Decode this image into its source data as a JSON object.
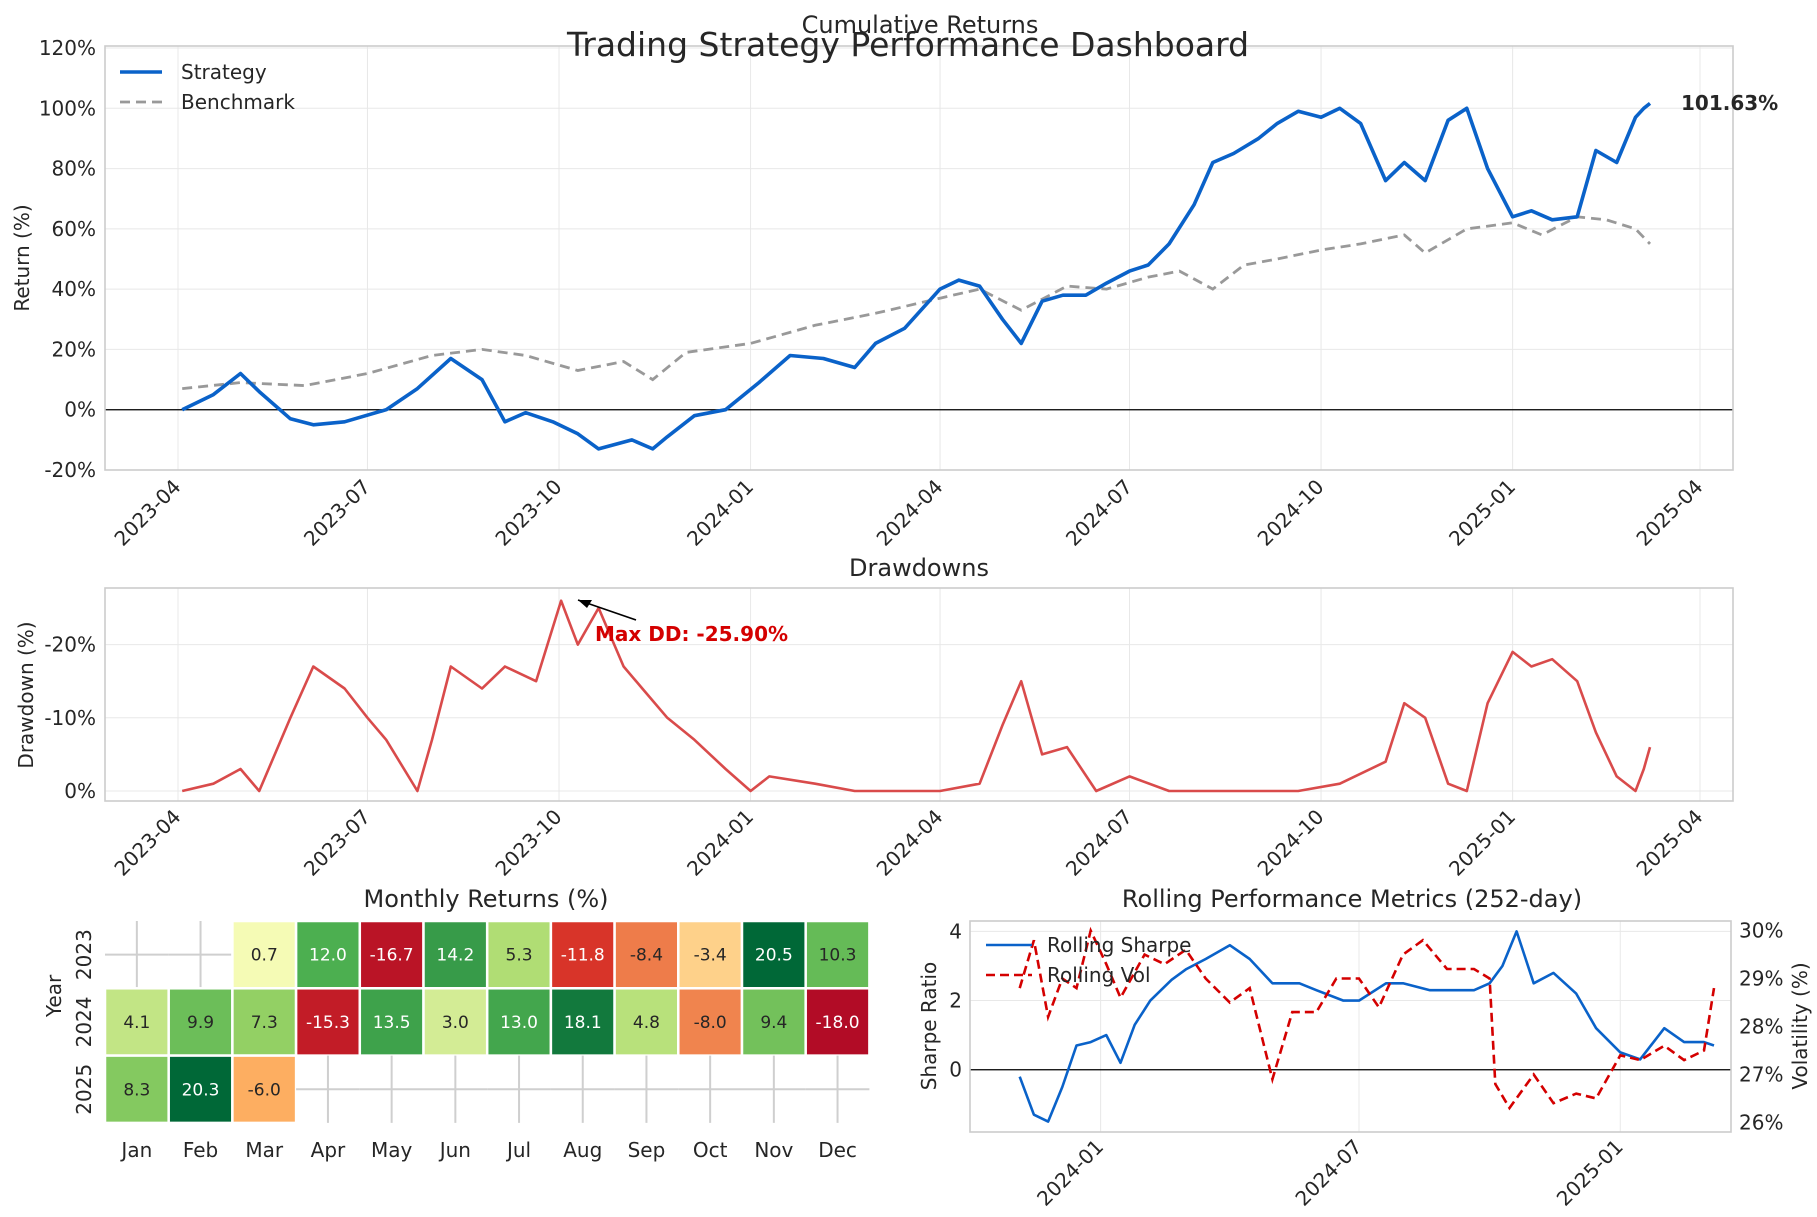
{
  "suptitle": "Trading Strategy Performance Dashboard",
  "colors": {
    "strategy": "#0a62c9",
    "benchmark": "#999999",
    "drawdown": "#d94b4b",
    "rolling_sharpe": "#0a62c9",
    "rolling_vol": "#d40000",
    "annotation_dd": "#d40000"
  },
  "chart_data": [
    {
      "type": "line",
      "title": "Cumulative Returns",
      "xlabel": "",
      "ylabel": "Return (%)",
      "ylim": [
        -20,
        120
      ],
      "yticks": [
        "-20%",
        "0%",
        "20%",
        "40%",
        "60%",
        "80%",
        "100%",
        "120%"
      ],
      "xticks": [
        "2023-04",
        "2023-07",
        "2023-10",
        "2024-01",
        "2024-04",
        "2024-07",
        "2024-10",
        "2025-01",
        "2025-04"
      ],
      "grid": true,
      "legend": "top-left",
      "final_label": "101.63%",
      "series": [
        {
          "name": "Strategy",
          "style": "solid",
          "x": [
            "2023-04-03",
            "2023-04-18",
            "2023-05-01",
            "2023-05-10",
            "2023-05-25",
            "2023-06-05",
            "2023-06-20",
            "2023-07-10",
            "2023-07-25",
            "2023-08-10",
            "2023-08-25",
            "2023-09-05",
            "2023-09-15",
            "2023-09-28",
            "2023-10-10",
            "2023-10-20",
            "2023-11-05",
            "2023-11-15",
            "2023-11-22",
            "2023-12-05",
            "2023-12-20",
            "2024-01-05",
            "2024-01-20",
            "2024-02-05",
            "2024-02-20",
            "2024-03-01",
            "2024-03-15",
            "2024-04-01",
            "2024-04-10",
            "2024-04-20",
            "2024-05-01",
            "2024-05-10",
            "2024-05-20",
            "2024-05-30",
            "2024-06-10",
            "2024-06-20",
            "2024-07-01",
            "2024-07-10",
            "2024-07-20",
            "2024-08-01",
            "2024-08-10",
            "2024-08-20",
            "2024-09-01",
            "2024-09-10",
            "2024-09-20",
            "2024-10-01",
            "2024-10-10",
            "2024-10-20",
            "2024-11-01",
            "2024-11-10",
            "2024-11-20",
            "2024-12-01",
            "2024-12-10",
            "2024-12-20",
            "2025-01-01",
            "2025-01-10",
            "2025-01-20",
            "2025-02-01",
            "2025-02-10",
            "2025-02-20",
            "2025-03-01",
            "2025-03-05",
            "2025-03-08"
          ],
          "values": [
            0,
            5,
            12,
            6,
            -3,
            -5,
            -4,
            0,
            7,
            17,
            10,
            -4,
            -1,
            -4,
            -8,
            -13,
            -10,
            -13,
            -9,
            -2,
            0,
            9,
            18,
            17,
            14,
            22,
            27,
            40,
            43,
            41,
            30,
            22,
            36,
            38,
            38,
            42,
            46,
            48,
            55,
            68,
            82,
            85,
            90,
            95,
            99,
            97,
            100,
            95,
            76,
            82,
            76,
            96,
            100,
            80,
            64,
            66,
            63,
            64,
            86,
            82,
            97,
            100,
            101.63
          ]
        },
        {
          "name": "Benchmark",
          "style": "dashed",
          "x": [
            "2023-04-03",
            "2023-05-01",
            "2023-06-01",
            "2023-07-01",
            "2023-08-01",
            "2023-08-25",
            "2023-09-15",
            "2023-10-10",
            "2023-11-01",
            "2023-11-15",
            "2023-12-01",
            "2024-01-01",
            "2024-02-01",
            "2024-03-01",
            "2024-04-01",
            "2024-04-20",
            "2024-05-10",
            "2024-06-01",
            "2024-06-20",
            "2024-07-10",
            "2024-07-25",
            "2024-08-10",
            "2024-08-25",
            "2024-09-10",
            "2024-10-01",
            "2024-10-20",
            "2024-11-10",
            "2024-11-20",
            "2024-12-10",
            "2025-01-01",
            "2025-01-15",
            "2025-02-01",
            "2025-02-15",
            "2025-03-01",
            "2025-03-08"
          ],
          "values": [
            7,
            9,
            8,
            12,
            18,
            20,
            18,
            13,
            16,
            10,
            19,
            22,
            28,
            32,
            37,
            40,
            33,
            41,
            40,
            44,
            46,
            40,
            48,
            50,
            53,
            55,
            58,
            52,
            60,
            62,
            58,
            64,
            63,
            60,
            55
          ]
        }
      ]
    },
    {
      "type": "line",
      "title": "Drawdowns",
      "xlabel": "",
      "ylabel": "Drawdown (%)",
      "ylim": [
        0,
        -26.5
      ],
      "yticks": [
        "-20%",
        "-10%",
        "0%"
      ],
      "xticks": [
        "2023-04",
        "2023-07",
        "2023-10",
        "2024-01",
        "2024-04",
        "2024-07",
        "2024-10",
        "2025-01",
        "2025-04"
      ],
      "grid": true,
      "annotation": "Max DD: -25.90%",
      "series": [
        {
          "name": "Drawdown",
          "x": [
            "2023-04-03",
            "2023-04-18",
            "2023-05-01",
            "2023-05-10",
            "2023-05-25",
            "2023-06-05",
            "2023-06-20",
            "2023-07-01",
            "2023-07-10",
            "2023-07-25",
            "2023-08-01",
            "2023-08-10",
            "2023-08-25",
            "2023-09-05",
            "2023-09-20",
            "2023-10-02",
            "2023-10-10",
            "2023-10-20",
            "2023-11-01",
            "2023-11-10",
            "2023-11-22",
            "2023-12-05",
            "2023-12-20",
            "2024-01-01",
            "2024-01-10",
            "2024-02-01",
            "2024-02-20",
            "2024-03-10",
            "2024-04-01",
            "2024-04-20",
            "2024-05-01",
            "2024-05-10",
            "2024-05-20",
            "2024-06-01",
            "2024-06-15",
            "2024-07-01",
            "2024-07-20",
            "2024-08-10",
            "2024-09-01",
            "2024-09-20",
            "2024-10-10",
            "2024-11-01",
            "2024-11-10",
            "2024-11-20",
            "2024-12-01",
            "2024-12-10",
            "2024-12-20",
            "2025-01-01",
            "2025-01-10",
            "2025-01-20",
            "2025-02-01",
            "2025-02-10",
            "2025-02-20",
            "2025-03-01",
            "2025-03-05",
            "2025-03-08"
          ],
          "values": [
            0,
            -1,
            -3,
            0,
            -10,
            -17,
            -14,
            -10,
            -7,
            0,
            -7,
            -17,
            -14,
            -17,
            -15,
            -26,
            -20,
            -25,
            -17,
            -14,
            -10,
            -7,
            -3,
            0,
            -2,
            -1,
            0,
            0,
            0,
            -1,
            -9,
            -15,
            -5,
            -6,
            0,
            -2,
            0,
            0,
            0,
            0,
            -1,
            -4,
            -12,
            -10,
            -1,
            0,
            -12,
            -19,
            -17,
            -18,
            -15,
            -8,
            -2,
            0,
            -3,
            -6
          ]
        }
      ]
    },
    {
      "type": "heatmap",
      "title": "Monthly Returns (%)",
      "xlabel": "",
      "ylabel": "Year",
      "columns": [
        "Jan",
        "Feb",
        "Mar",
        "Apr",
        "May",
        "Jun",
        "Jul",
        "Aug",
        "Sep",
        "Oct",
        "Nov",
        "Dec"
      ],
      "rows": [
        "2023",
        "2024",
        "2025"
      ],
      "values": [
        [
          null,
          null,
          0.7,
          12.0,
          -16.7,
          14.2,
          5.3,
          -11.8,
          -8.4,
          -3.4,
          20.5,
          10.3
        ],
        [
          4.1,
          9.9,
          7.3,
          -15.3,
          13.5,
          3.0,
          13.0,
          18.1,
          4.8,
          -8.0,
          9.4,
          -18.0
        ],
        [
          8.3,
          20.3,
          -6.0,
          null,
          null,
          null,
          null,
          null,
          null,
          null,
          null,
          null
        ]
      ],
      "labels": [
        [
          "",
          "",
          "0.7",
          "12.0",
          "-16.7",
          "14.2",
          "5.3",
          "-11.8",
          "-8.4",
          "-3.4",
          "20.5",
          "10.3"
        ],
        [
          "4.1",
          "9.9",
          "7.3",
          "-15.3",
          "13.5",
          "3.0",
          "13.0",
          "18.1",
          "4.8",
          "-8.0",
          "9.4",
          "-18.0"
        ],
        [
          "8.3",
          "20.3",
          "-6.0",
          "",
          "",
          "",
          "",
          "",
          "",
          "",
          "",
          ""
        ]
      ],
      "colormap": "RdYlGn",
      "vmin": -20,
      "vmax": 20
    },
    {
      "type": "line",
      "title": "Rolling Performance Metrics (252-day)",
      "xlabel": "",
      "ylabel": "Sharpe Ratio",
      "y2label": "Volatility (%)",
      "ylim": [
        -1.8,
        4.3
      ],
      "y2lim": [
        25.8,
        30.2
      ],
      "yticks": [
        "0",
        "2",
        "4"
      ],
      "y2ticks": [
        "26%",
        "27%",
        "28%",
        "29%",
        "30%"
      ],
      "xticks": [
        "2024-01",
        "2024-07",
        "2025-01"
      ],
      "grid": true,
      "legend": "top-left",
      "series": [
        {
          "name": "Rolling Sharpe",
          "axis": "left",
          "style": "solid",
          "x": [
            "2023-11-05",
            "2023-11-15",
            "2023-11-25",
            "2023-12-05",
            "2023-12-15",
            "2023-12-25",
            "2024-01-05",
            "2024-01-15",
            "2024-01-25",
            "2024-02-05",
            "2024-02-20",
            "2024-03-01",
            "2024-03-15",
            "2024-04-01",
            "2024-04-15",
            "2024-05-01",
            "2024-05-20",
            "2024-06-01",
            "2024-06-20",
            "2024-07-01",
            "2024-07-20",
            "2024-08-01",
            "2024-08-20",
            "2024-09-01",
            "2024-09-20",
            "2024-10-01",
            "2024-10-10",
            "2024-10-20",
            "2024-11-01",
            "2024-11-15",
            "2024-12-01",
            "2024-12-15",
            "2025-01-01",
            "2025-01-15",
            "2025-02-01",
            "2025-02-15",
            "2025-03-01",
            "2025-03-08"
          ],
          "values": [
            -0.2,
            -1.3,
            -1.5,
            -0.5,
            0.7,
            0.8,
            1.0,
            0.2,
            1.3,
            2.0,
            2.6,
            2.9,
            3.2,
            3.6,
            3.2,
            2.5,
            2.5,
            2.3,
            2.0,
            2.0,
            2.5,
            2.5,
            2.3,
            2.3,
            2.3,
            2.5,
            3.0,
            4.0,
            2.5,
            2.8,
            2.2,
            1.2,
            0.5,
            0.3,
            1.2,
            0.8,
            0.8,
            0.7
          ]
        },
        {
          "name": "Rolling Vol",
          "axis": "right",
          "style": "dashed",
          "x": [
            "2023-11-05",
            "2023-11-15",
            "2023-11-25",
            "2023-12-05",
            "2023-12-15",
            "2023-12-25",
            "2024-01-05",
            "2024-01-15",
            "2024-02-01",
            "2024-02-15",
            "2024-03-01",
            "2024-03-15",
            "2024-04-01",
            "2024-04-15",
            "2024-05-01",
            "2024-05-15",
            "2024-06-01",
            "2024-06-15",
            "2024-07-01",
            "2024-07-15",
            "2024-08-01",
            "2024-08-15",
            "2024-09-01",
            "2024-09-20",
            "2024-10-01",
            "2024-10-05",
            "2024-10-15",
            "2024-11-01",
            "2024-11-15",
            "2024-12-01",
            "2024-12-15",
            "2025-01-01",
            "2025-01-15",
            "2025-02-01",
            "2025-02-15",
            "2025-03-01",
            "2025-03-08"
          ],
          "values": [
            28.8,
            29.8,
            28.2,
            29.0,
            28.8,
            30.0,
            29.3,
            28.6,
            29.5,
            29.3,
            29.6,
            29.0,
            28.5,
            28.8,
            26.9,
            28.3,
            28.3,
            29.0,
            29.0,
            28.4,
            29.5,
            29.8,
            29.2,
            29.2,
            29.0,
            26.8,
            26.3,
            27.0,
            26.4,
            26.6,
            26.5,
            27.4,
            27.3,
            27.6,
            27.3,
            27.5,
            28.8
          ]
        }
      ]
    }
  ]
}
